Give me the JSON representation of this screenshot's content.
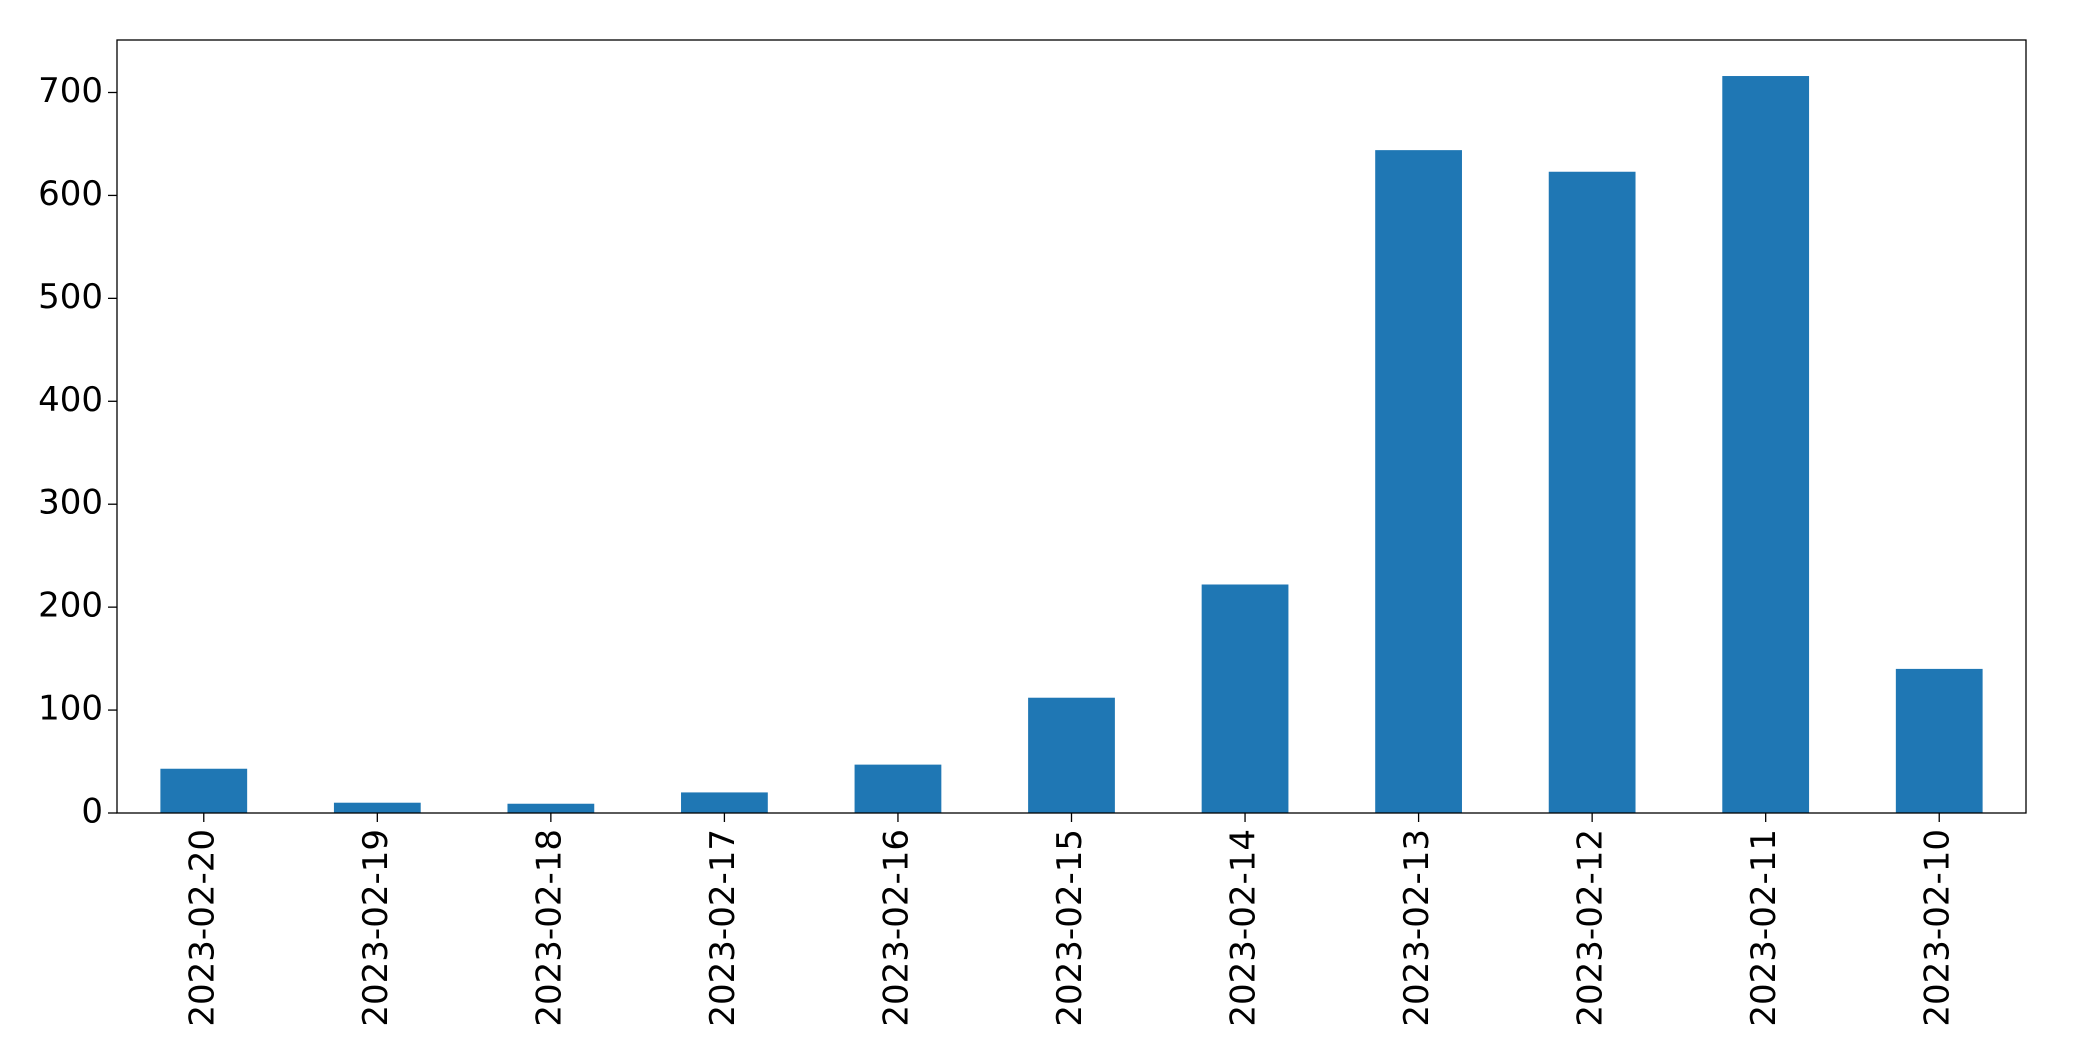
{
  "chart_data": {
    "type": "bar",
    "categories": [
      "2023-02-20",
      "2023-02-19",
      "2023-02-18",
      "2023-02-17",
      "2023-02-16",
      "2023-02-15",
      "2023-02-14",
      "2023-02-13",
      "2023-02-12",
      "2023-02-11",
      "2023-02-10"
    ],
    "values": [
      43,
      10,
      9,
      20,
      47,
      112,
      222,
      644,
      623,
      716,
      140
    ],
    "color": "#1f77b4",
    "ylim": [
      0,
      751
    ],
    "yticks": [
      0,
      100,
      200,
      300,
      400,
      500,
      600,
      700
    ],
    "grid": false
  }
}
